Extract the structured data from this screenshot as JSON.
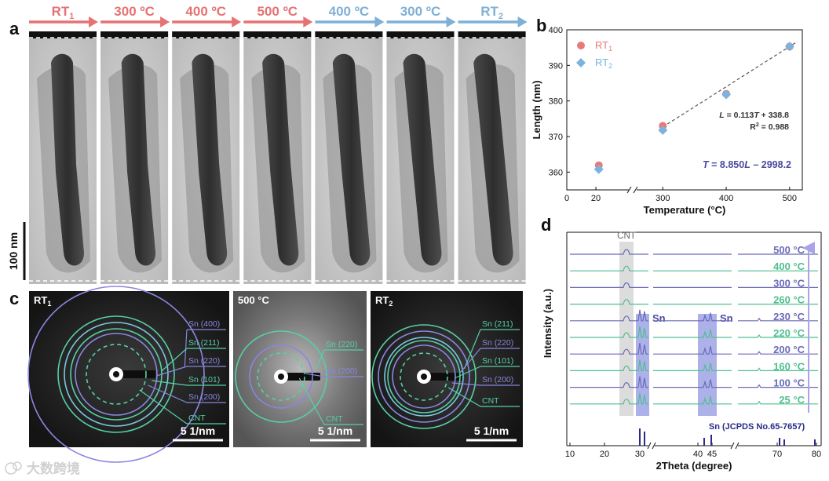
{
  "panels": {
    "a": "a",
    "b": "b",
    "c": "c",
    "d": "d"
  },
  "panel_a": {
    "frames": [
      {
        "label": "RT",
        "sub": "1",
        "color": "#e57373"
      },
      {
        "label": "300 ºC",
        "sub": "",
        "color": "#e57373"
      },
      {
        "label": "400 ºC",
        "sub": "",
        "color": "#e57373"
      },
      {
        "label": "500 ºC",
        "sub": "",
        "color": "#e57373"
      },
      {
        "label": "400 ºC",
        "sub": "",
        "color": "#7fb0d6"
      },
      {
        "label": "300 ºC",
        "sub": "",
        "color": "#7fb0d6"
      },
      {
        "label": "RT",
        "sub": "2",
        "color": "#7fb0d6"
      }
    ],
    "scale_bar": "100 nm"
  },
  "panel_c": {
    "images": [
      {
        "title": "RT",
        "title_sub": "1",
        "scale": "5 1/nm",
        "labels": [
          "Sn (400)",
          "Sn (211)",
          "Sn (220)",
          "Sn (101)",
          "Sn (200)",
          "CNT"
        ]
      },
      {
        "title": "500 °C",
        "title_sub": "",
        "scale": "5 1/nm",
        "labels": [
          "Sn (220)",
          "Sn (200)",
          "CNT"
        ]
      },
      {
        "title": "RT",
        "title_sub": "2",
        "scale": "5 1/nm",
        "labels": [
          "Sn (211)",
          "Sn (220)",
          "Sn (101)",
          "Sn (200)",
          "CNT"
        ]
      }
    ],
    "colors": {
      "sn_purple": "#8a86e0",
      "sn_green": "#56d0a4"
    }
  },
  "chart_data": [
    {
      "type": "scatter",
      "panel": "b",
      "xlabel": "Temperature (°C)",
      "ylabel": "Length (nm)",
      "x_ticks_left": [
        0,
        20
      ],
      "x_ticks_right": [
        300,
        400,
        500
      ],
      "y_ticks": [
        360,
        370,
        380,
        390,
        400
      ],
      "ylim": [
        355,
        400
      ],
      "x_break": true,
      "series": [
        {
          "name": "RT",
          "name_sub": "1",
          "marker": "circle",
          "color": "#e87a7a",
          "points": [
            [
              22,
              361.9
            ],
            [
              300,
              373.0
            ],
            [
              400,
              382.0
            ],
            [
              500,
              395.3
            ]
          ]
        },
        {
          "name": "RT",
          "name_sub": "2",
          "marker": "diamond",
          "color": "#7ab4de",
          "points": [
            [
              22,
              360.8
            ],
            [
              300,
              371.8
            ],
            [
              400,
              381.8
            ],
            [
              500,
              395.3
            ]
          ]
        }
      ],
      "fit": {
        "x": [
          285,
          510
        ],
        "slope": 0.113,
        "intercept": 338.8
      },
      "annotations": {
        "eq1_var": "L",
        "eq1_rest": " = 0.113",
        "eq1_var2": "T",
        "eq1_tail": " + 338.8",
        "r2_pre": "R",
        "r2_sup": "2",
        "r2_tail": " = 0.988",
        "eq2_var": "T",
        "eq2_mid": " = 8.850",
        "eq2_var2": "L",
        "eq2_tail": " – 2998.2"
      },
      "legend_placement": "top-left"
    },
    {
      "type": "line",
      "panel": "d",
      "xlabel": "2Theta (degree)",
      "ylabel": "Intensity (a.u.)",
      "x_ticks": [
        10,
        20,
        30,
        40,
        45,
        70,
        80
      ],
      "x_break": true,
      "temperatures": [
        "500 °C",
        "400 °C",
        "300 °C",
        "260 °C",
        "230 °C",
        "220 °C",
        "200 °C",
        "160 °C",
        "100 °C",
        "25 °C"
      ],
      "temp_colors": [
        "#6a6ab8",
        "#4fbf8f",
        "#6a6ab8",
        "#4fbf8f",
        "#6a6ab8",
        "#4fbf8f",
        "#6a6ab8",
        "#4fbf8f",
        "#6a6ab8",
        "#4fbf8f"
      ],
      "sn_peaks_visible": [
        false,
        false,
        false,
        false,
        true,
        true,
        true,
        true,
        true,
        true
      ],
      "peak_labels": {
        "cnt": "CNT",
        "sn_a": "Sn",
        "sn_b": "Sn"
      },
      "reference_label": "Sn (JCPDS No.65-7657)",
      "reference_peaks": [
        30.6,
        32.0,
        43.9,
        44.9,
        62.5,
        64.6,
        79.5
      ]
    }
  ],
  "watermark": "大数跨境"
}
